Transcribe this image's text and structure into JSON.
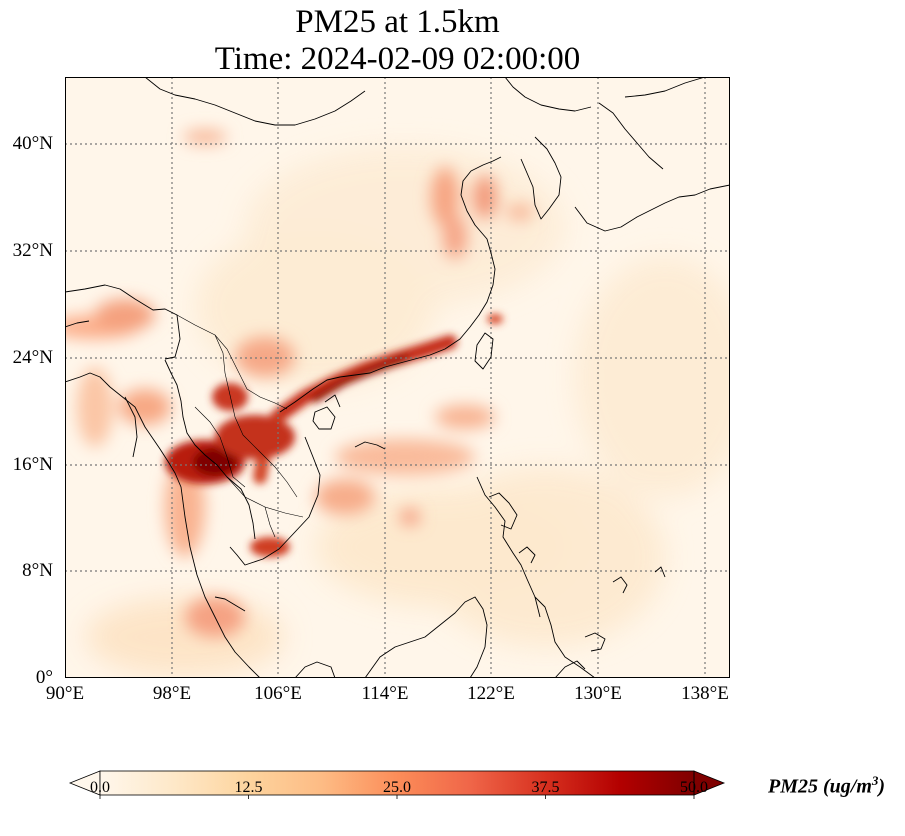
{
  "title": {
    "line1": "PM25 at 1.5km",
    "line2": "Time: 2024-02-09 02:00:00"
  },
  "map": {
    "extent": {
      "lon": [
        90,
        140
      ],
      "lat": [
        0,
        44
      ]
    },
    "lat_ticks": [
      "0°",
      "8°N",
      "16°N",
      "24°N",
      "32°N",
      "40°N"
    ],
    "lat_values": [
      0,
      8,
      16,
      24,
      32,
      40
    ],
    "lon_ticks": [
      "90°E",
      "98°E",
      "106°E",
      "114°E",
      "122°E",
      "130°E",
      "138°E"
    ],
    "lon_values": [
      90,
      98,
      106,
      114,
      122,
      130,
      138
    ],
    "gridlines": "dotted"
  },
  "colorbar": {
    "cmap": "OrRd",
    "colors": [
      "#fff7ec",
      "#fee8c8",
      "#fdd49e",
      "#fdbb84",
      "#fc8d59",
      "#ef6548",
      "#d7301f",
      "#b30000",
      "#7f0000"
    ],
    "ticks": [
      "0.0",
      "12.5",
      "25.0",
      "37.5",
      "50.0"
    ],
    "tick_values": [
      0,
      12.5,
      25,
      37.5,
      50
    ],
    "range": [
      0,
      50
    ],
    "extend": "both",
    "label_prefix": "PM25 (ug/m",
    "label_sup": "3",
    "label_suffix": ")"
  }
}
